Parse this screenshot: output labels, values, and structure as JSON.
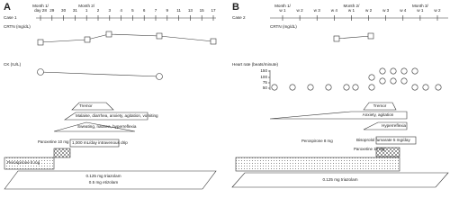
{
  "panel_a": {
    "label": "A",
    "case": "Case 1",
    "timeline": [
      "Month 1/ day 28",
      "29",
      "30",
      "31",
      "Month 2/ 1",
      "2",
      "3",
      "4",
      "5",
      "6",
      "7",
      "9",
      "11",
      "13",
      "15",
      "17"
    ],
    "crtn_label": "CRTN (mg/dL)",
    "ck_label": "CK (IU/L)",
    "symptoms": [
      "Tremor",
      "Malaise, diarrhea, anxiety, agitation, vomiting",
      "Sweating, nausea, hyperreflexia"
    ],
    "drip": "1,000 mL/day intravenous drip",
    "paroxetine": "Paroxetine 10 mg",
    "perospirone": "Perospirone 8 mg",
    "benzo": [
      "0.125 mg triazolam",
      "0.5 mg etizolam"
    ]
  },
  "panel_b": {
    "label": "B",
    "case": "Case 2",
    "timeline": [
      "Month 1/ w 1",
      "w 2",
      "w 3",
      "w 4",
      "Month 2/ w 1",
      "w 2",
      "w 3",
      "w 4",
      "Month 3/ w 1",
      "w 2"
    ],
    "crtn_label": "CRTN (mg/dL)",
    "hr_label": "Heart rate (beats/minute)",
    "hr_ticks": [
      "150",
      "100",
      "75",
      "50"
    ],
    "symptoms": [
      "Tremor",
      "Anxiety, agitation",
      "Hyperreflexia"
    ],
    "bisoprolol": "Bisoprolol fumarate 5 mg/day",
    "perospirone": "Perospirone 8 mg",
    "paroxetine": "Paroxetine 10 mg",
    "benzo": "0.125 mg triazolam"
  }
}
